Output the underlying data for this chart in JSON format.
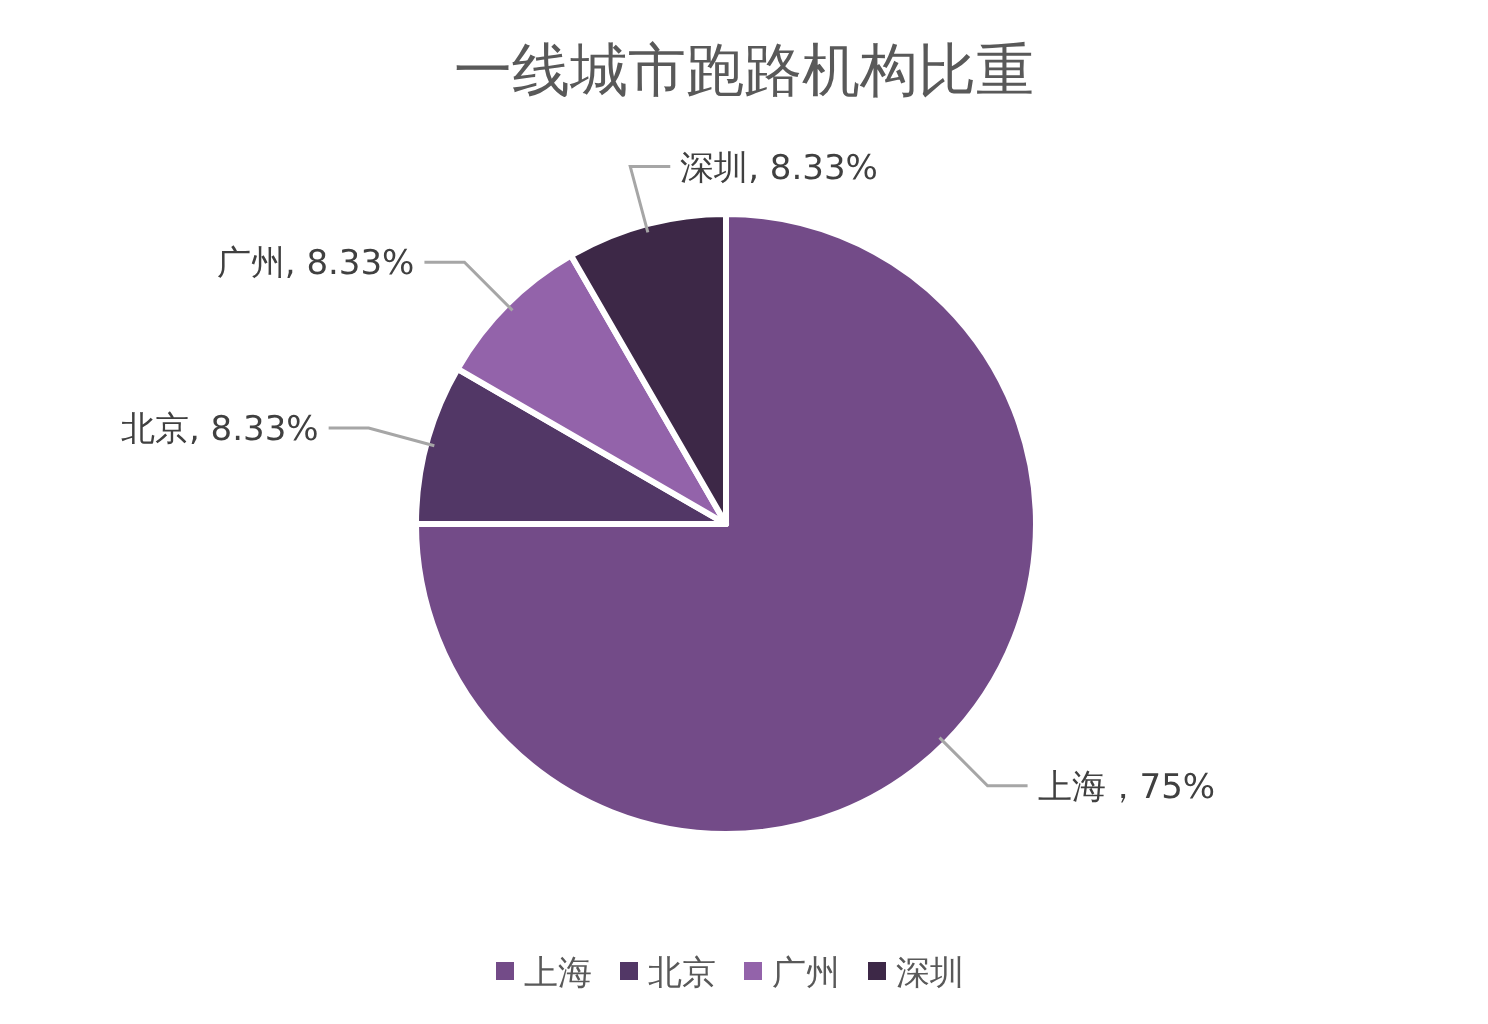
{
  "chart_data": {
    "type": "pie",
    "title": "一线城市跑路机构比重",
    "categories": [
      "上海",
      "北京",
      "广州",
      "深圳"
    ],
    "values": [
      75,
      8.33,
      8.33,
      8.33
    ],
    "colors": [
      "#734b88",
      "#523766",
      "#9363aa",
      "#3d2847"
    ],
    "value_labels": [
      "上海，75%",
      "北京, 8.33%",
      "广州, 8.33%",
      "深圳, 8.33%"
    ],
    "legend": "bottom"
  }
}
